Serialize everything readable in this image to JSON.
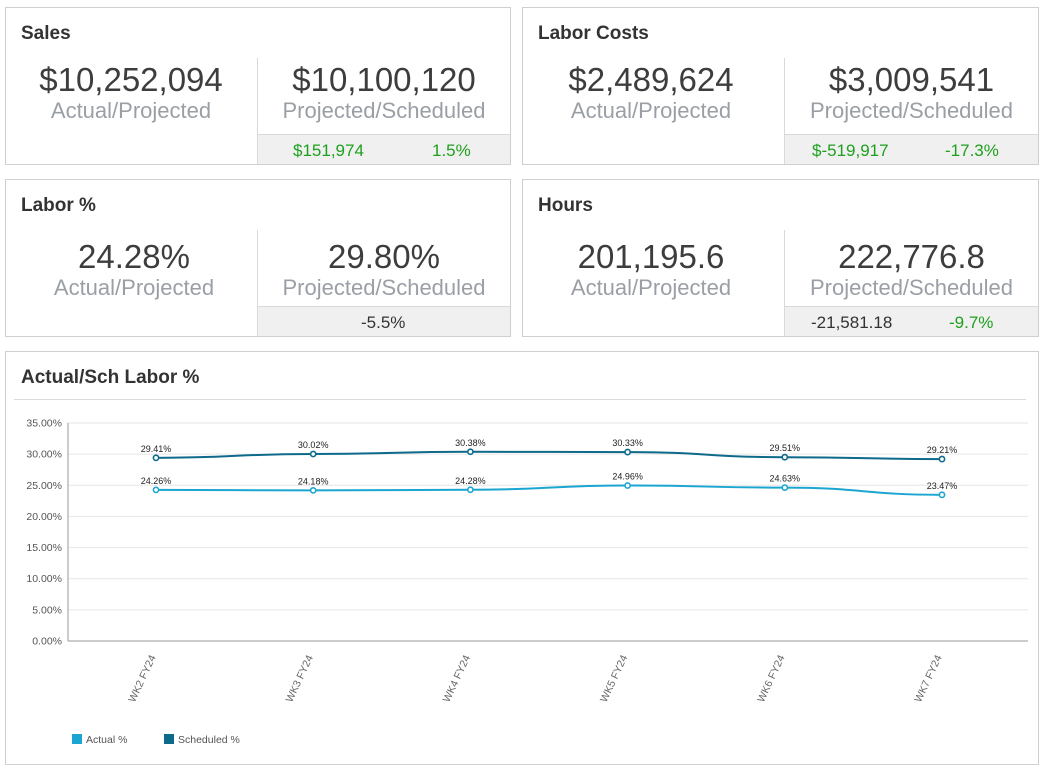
{
  "cards": {
    "sales": {
      "title": "Sales",
      "actual_value": "$10,252,094",
      "actual_label": "Actual/Projected",
      "scheduled_value": "$10,100,120",
      "scheduled_label": "Projected/Scheduled",
      "variance_amount": "$151,974",
      "variance_pct": "1.5%"
    },
    "labor_costs": {
      "title": "Labor Costs",
      "actual_value": "$2,489,624",
      "actual_label": "Actual/Projected",
      "scheduled_value": "$3,009,541",
      "scheduled_label": "Projected/Scheduled",
      "variance_amount": "$-519,917",
      "variance_pct": "-17.3%"
    },
    "labor_pct": {
      "title": "Labor %",
      "actual_value": "24.28%",
      "actual_label": "Actual/Projected",
      "scheduled_value": "29.80%",
      "scheduled_label": "Projected/Scheduled",
      "variance_pct": "-5.5%"
    },
    "hours": {
      "title": "Hours",
      "actual_value": "201,195.6",
      "actual_label": "Actual/Projected",
      "scheduled_value": "222,776.8",
      "scheduled_label": "Projected/Scheduled",
      "variance_amount": "-21,581.18",
      "variance_pct": "-9.7%"
    }
  },
  "colors": {
    "positive": "#1ea01e",
    "actual_series": "#1ba6d1",
    "scheduled_series": "#0e6a8a"
  },
  "chart_card": {
    "title": "Actual/Sch Labor %"
  },
  "chart_data": {
    "type": "line",
    "title": "Actual/Sch Labor %",
    "categories": [
      "WK2 FY24",
      "WK3 FY24",
      "WK4 FY24",
      "WK5 FY24",
      "WK6 FY24",
      "WK7 FY24"
    ],
    "series": [
      {
        "name": "Actual %",
        "values": [
          24.26,
          24.18,
          24.28,
          24.96,
          24.63,
          23.47
        ],
        "labels": [
          "24.26%",
          "24.18%",
          "24.28%",
          "24.96%",
          "24.63%",
          "23.47%"
        ]
      },
      {
        "name": "Scheduled %",
        "values": [
          29.41,
          30.02,
          30.38,
          30.33,
          29.51,
          29.21
        ],
        "labels": [
          "29.41%",
          "30.02%",
          "30.38%",
          "30.33%",
          "29.51%",
          "29.21%"
        ]
      }
    ],
    "y_ticks": [
      "0.00%",
      "5.00%",
      "10.00%",
      "15.00%",
      "20.00%",
      "25.00%",
      "30.00%",
      "35.00%"
    ],
    "ylim": [
      0,
      35
    ],
    "grid": true,
    "legend_position": "bottom-left"
  }
}
